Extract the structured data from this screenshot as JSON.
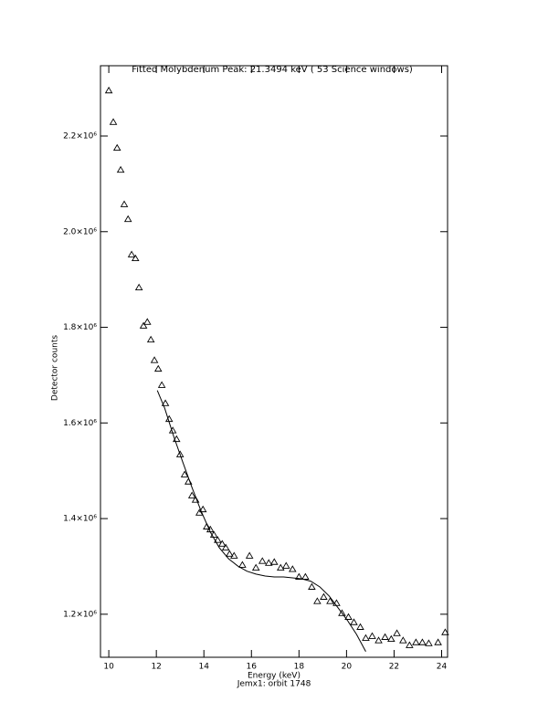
{
  "chart_data": {
    "type": "scatter",
    "title": "Fitted Molybdenum Peak:      21.3494 keV (      53 Science windows)",
    "xlabel": "Energy (keV)",
    "subtitle": "Jemx1: orbit 1748",
    "ylabel": "Detector counts",
    "color": "#000000",
    "xlim": [
      9.65,
      24.25
    ],
    "ylim": [
      1110000,
      2347000
    ],
    "xticks": [
      10,
      12,
      14,
      16,
      18,
      20,
      22,
      24
    ],
    "yticks": [
      {
        "value": 1200000,
        "label": "1.2×10⁶"
      },
      {
        "value": 1400000,
        "label": "1.4×10⁶"
      },
      {
        "value": 1600000,
        "label": "1.6×10⁶"
      },
      {
        "value": 1800000,
        "label": "1.8×10⁶"
      },
      {
        "value": 2000000,
        "label": "2.0×10⁶"
      },
      {
        "value": 2200000,
        "label": "2.2×10⁶"
      }
    ],
    "points": {
      "x": [
        10.0,
        10.19,
        10.35,
        10.5,
        10.65,
        10.81,
        10.96,
        11.12,
        11.27,
        11.46,
        11.62,
        11.77,
        11.92,
        12.08,
        12.23,
        12.38,
        12.54,
        12.69,
        12.85,
        13.0,
        13.19,
        13.35,
        13.5,
        13.65,
        13.81,
        13.96,
        14.12,
        14.27,
        14.42,
        14.58,
        14.77,
        14.92,
        15.08,
        15.27,
        15.62,
        15.92,
        16.19,
        16.46,
        16.73,
        16.96,
        17.23,
        17.46,
        17.73,
        18.0,
        18.27,
        18.54,
        18.77,
        19.04,
        19.31,
        19.58,
        19.81,
        20.08,
        20.31,
        20.58,
        20.81,
        21.08,
        21.35,
        21.62,
        21.88,
        22.12,
        22.38,
        22.65,
        22.92,
        23.19,
        23.46,
        23.85,
        24.15
      ],
      "y": [
        2295000,
        2229000,
        2175000,
        2129000,
        2057000,
        2026000,
        1952000,
        1944000,
        1883000,
        1803000,
        1811000,
        1774000,
        1731000,
        1713000,
        1679000,
        1641000,
        1608000,
        1584000,
        1566000,
        1534000,
        1492000,
        1477000,
        1448000,
        1439000,
        1412000,
        1419000,
        1383000,
        1377000,
        1366000,
        1355000,
        1347000,
        1339000,
        1326000,
        1322000,
        1303000,
        1322000,
        1297000,
        1311000,
        1307000,
        1309000,
        1297000,
        1301000,
        1294000,
        1278000,
        1278000,
        1257000,
        1227000,
        1236000,
        1227000,
        1223000,
        1202000,
        1194000,
        1183000,
        1173000,
        1150000,
        1154000,
        1145000,
        1152000,
        1148000,
        1160000,
        1145000,
        1135000,
        1141000,
        1141000,
        1139000,
        1141000,
        1162000
      ]
    },
    "fit": {
      "x": [
        12.04,
        12.35,
        12.73,
        13.12,
        13.5,
        13.88,
        14.27,
        14.65,
        15.04,
        15.42,
        15.81,
        16.19,
        16.58,
        16.96,
        17.35,
        17.73,
        18.12,
        18.5,
        18.88,
        19.27,
        19.65,
        20.04,
        20.42,
        20.81
      ],
      "y": [
        1668000,
        1631000,
        1572000,
        1517000,
        1465000,
        1416000,
        1372000,
        1339000,
        1316000,
        1301000,
        1290000,
        1284000,
        1280000,
        1278000,
        1278000,
        1276000,
        1274000,
        1269000,
        1257000,
        1238000,
        1213000,
        1187000,
        1158000,
        1122000
      ]
    }
  }
}
